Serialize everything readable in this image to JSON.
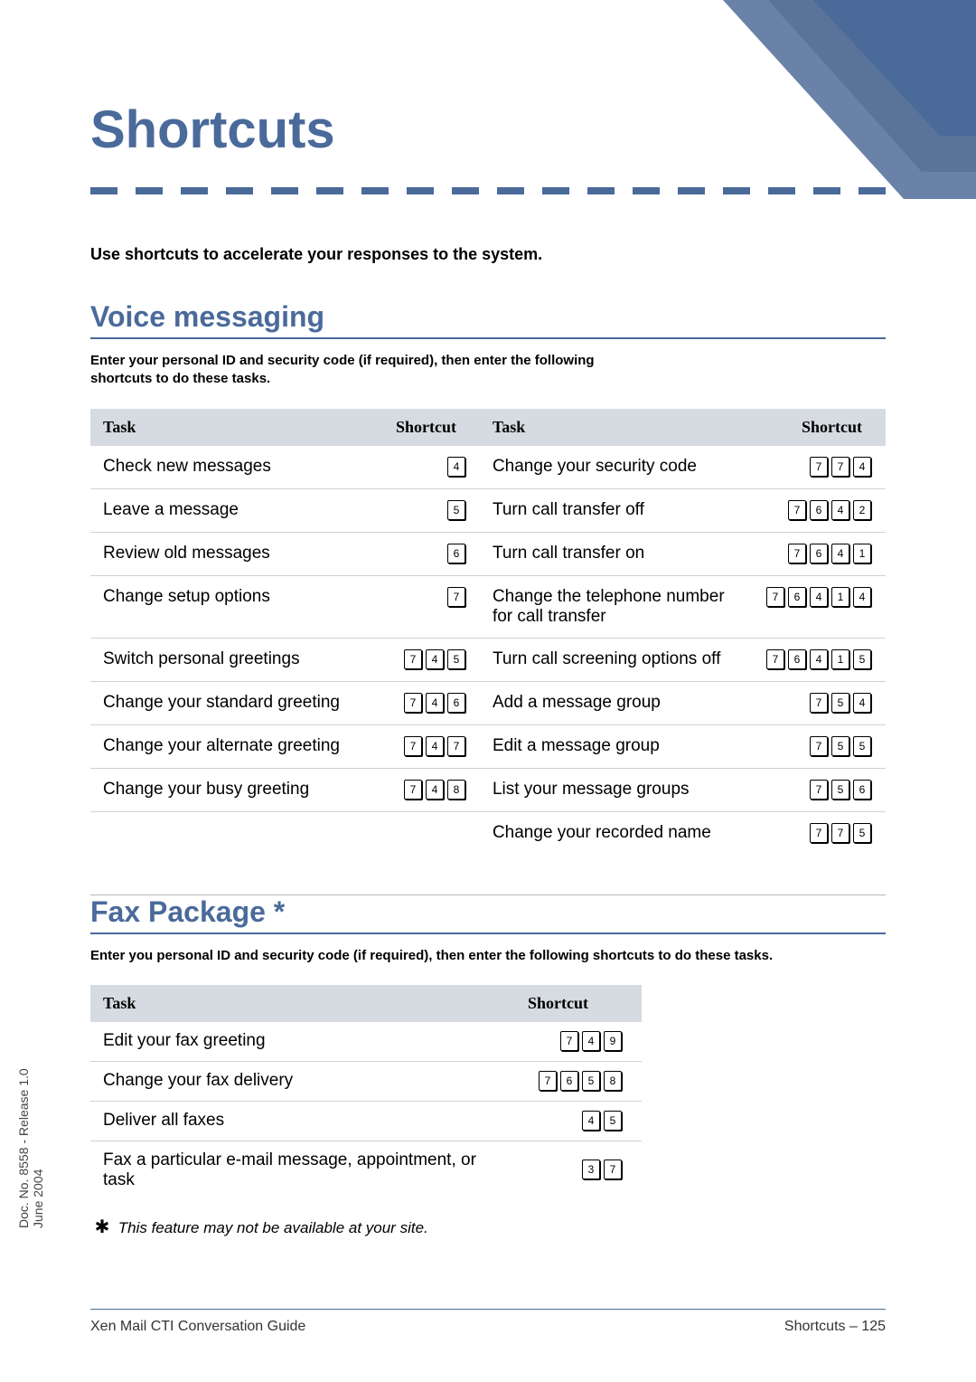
{
  "title": "Shortcuts",
  "intro": "Use shortcuts to accelerate your responses to the system.",
  "voice": {
    "heading": "Voice messaging",
    "sub": "Enter your personal ID and security code (if required), then enter the following shortcuts to do these tasks.",
    "header_task": "Task",
    "header_shortcut": "Shortcut",
    "left": [
      {
        "task": "Check new messages",
        "keys": [
          "4"
        ]
      },
      {
        "task": "Leave a message",
        "keys": [
          "5"
        ]
      },
      {
        "task": "Review old messages",
        "keys": [
          "6"
        ]
      },
      {
        "task": "Change setup options",
        "keys": [
          "7"
        ]
      },
      {
        "task": "Switch personal greetings",
        "keys": [
          "7",
          "4",
          "5"
        ]
      },
      {
        "task": "Change your standard greeting",
        "keys": [
          "7",
          "4",
          "6"
        ]
      },
      {
        "task": "Change your alternate greeting",
        "keys": [
          "7",
          "4",
          "7"
        ]
      },
      {
        "task": "Change your busy greeting",
        "keys": [
          "7",
          "4",
          "8"
        ]
      }
    ],
    "right": [
      {
        "task": "Change your security code",
        "keys": [
          "7",
          "7",
          "4"
        ]
      },
      {
        "task": "Turn call transfer off",
        "keys": [
          "7",
          "6",
          "4",
          "2"
        ]
      },
      {
        "task": "Turn call transfer on",
        "keys": [
          "7",
          "6",
          "4",
          "1"
        ]
      },
      {
        "task": "Change the telephone number for call transfer",
        "keys": [
          "7",
          "6",
          "4",
          "1",
          "4"
        ]
      },
      {
        "task": "Turn call screening options off",
        "keys": [
          "7",
          "6",
          "4",
          "1",
          "5"
        ]
      },
      {
        "task": "Add a message group",
        "keys": [
          "7",
          "5",
          "4"
        ]
      },
      {
        "task": "Edit a message group",
        "keys": [
          "7",
          "5",
          "5"
        ]
      },
      {
        "task": "List your message groups",
        "keys": [
          "7",
          "5",
          "6"
        ]
      },
      {
        "task": "Change your recorded name",
        "keys": [
          "7",
          "7",
          "5"
        ]
      }
    ]
  },
  "fax": {
    "heading": "Fax Package *",
    "sub": "Enter you personal ID and security code (if required), then enter the following shortcuts to do these tasks.",
    "header_task": "Task",
    "header_shortcut": "Shortcut",
    "rows": [
      {
        "task": "Edit your fax greeting",
        "keys": [
          "7",
          "4",
          "9"
        ]
      },
      {
        "task": "Change your fax delivery",
        "keys": [
          "7",
          "6",
          "5",
          "8"
        ]
      },
      {
        "task": "Deliver all faxes",
        "keys": [
          "4",
          "5"
        ]
      },
      {
        "task": "Fax a particular e-mail message, appointment, or task",
        "keys": [
          "3",
          "7"
        ]
      }
    ],
    "footnote_marker": "✱",
    "footnote": "This feature may not be available at your site."
  },
  "side_text": "Doc. No. 8558 - Release 1.0\nJune 2004",
  "footer_left": "Xen Mail CTI Conversation Guide",
  "footer_right": "Shortcuts – 125",
  "colors": {
    "accent": "#4a6a9a",
    "header_bg": "#d6dae1",
    "rule": "#b8b8b8"
  }
}
